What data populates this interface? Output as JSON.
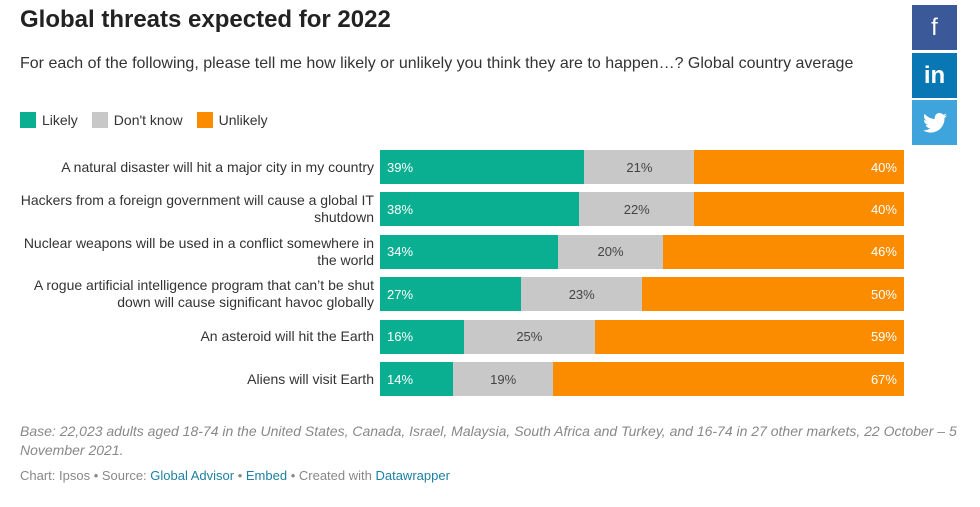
{
  "chart_data": {
    "type": "stacked-bar-horizontal",
    "title": "Global threats expected for 2022",
    "subtitle": "For each of the following, please tell me how likely or unlikely you think they are to happen…? Global country average",
    "categories": [
      "A natural disaster will hit a major city in my country",
      "Hackers from a foreign government will cause a global IT shutdown",
      "Nuclear weapons will be used in a conflict somewhere in the world",
      "A rogue artificial intelligence program that can’t be shut down will cause significant havoc globally",
      "An asteroid will hit the Earth",
      "Aliens will visit Earth"
    ],
    "series": [
      {
        "name": "Likely",
        "color": "#0aaf92",
        "values": [
          39,
          38,
          34,
          27,
          16,
          14
        ],
        "value_labels": [
          "39%",
          "38%",
          "34%",
          "27%",
          "16%",
          "14%"
        ]
      },
      {
        "name": "Don't know",
        "color": "#c8c8c8",
        "values": [
          21,
          22,
          20,
          23,
          25,
          19
        ],
        "value_labels": [
          "21%",
          "22%",
          "20%",
          "23%",
          "25%",
          "19%"
        ]
      },
      {
        "name": "Unlikely",
        "color": "#fb8c00",
        "values": [
          40,
          40,
          46,
          50,
          59,
          67
        ],
        "value_labels": [
          "40%",
          "40%",
          "46%",
          "50%",
          "59%",
          "67%"
        ]
      }
    ],
    "xlim": [
      0,
      100
    ],
    "legend": "top-left",
    "notes": "Base: 22,023 adults aged 18-74 in the United States, Canada, Israel, Malaysia, South Africa and Turkey, and 16-74 in 27 other markets, 22 October – 5 November 2021.",
    "footer": [
      {
        "text": "Chart: Ipsos • Source: ",
        "link": false
      },
      {
        "text": "Global Advisor",
        "link": true
      },
      {
        "text": " • ",
        "link": false
      },
      {
        "text": "Embed",
        "link": true
      },
      {
        "text": " • Created with ",
        "link": false
      },
      {
        "text": "Datawrapper",
        "link": true
      }
    ]
  },
  "share": [
    "f",
    "in"
  ]
}
